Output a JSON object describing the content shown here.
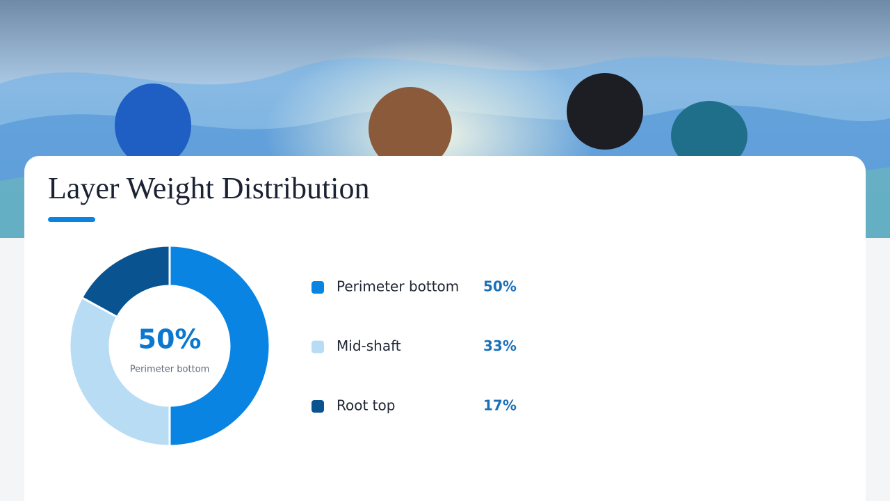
{
  "chart_data": {
    "type": "pie",
    "title": "Layer Weight Distribution",
    "categories": [
      "Perimeter bottom",
      "Mid-shaft",
      "Root top"
    ],
    "values": [
      50,
      33,
      17
    ],
    "value_labels": [
      "50%",
      "33%",
      "17%"
    ],
    "colors": [
      "#0984e3",
      "#b9dcf5",
      "#0a5391"
    ]
  }
}
